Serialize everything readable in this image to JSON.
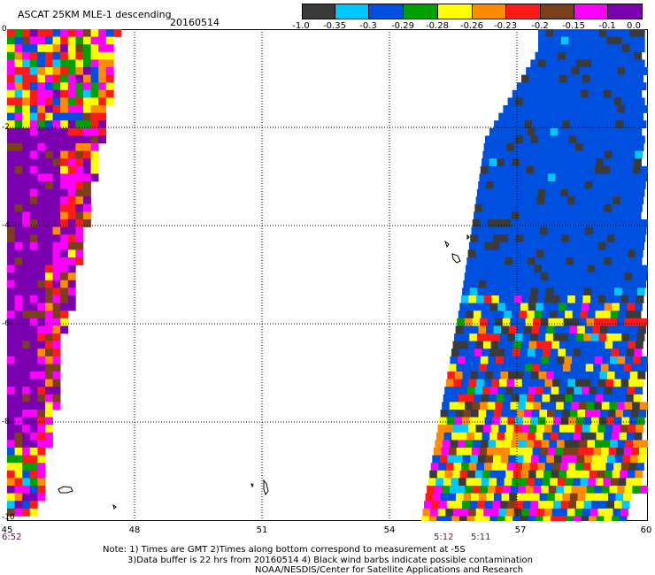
{
  "header": {
    "title": "ASCAT 25KM MLE-1 descending",
    "date": "20160514"
  },
  "legend": {
    "colors": [
      "#3a3a3a",
      "#00c8ff",
      "#0050e0",
      "#00a000",
      "#ffff00",
      "#ff8c00",
      "#ff1a1a",
      "#7b3f1a",
      "#ff00ff",
      "#7b00b0"
    ],
    "labels": [
      "-1.0",
      "-0.35",
      "-0.3",
      "-0.29",
      "-0.28",
      "-0.26",
      "-0.23",
      "-0.2",
      "-0.15",
      "-0.1",
      "0.0"
    ]
  },
  "axes": {
    "x_ticks": [
      "45",
      "48",
      "51",
      "54",
      "57",
      "60"
    ],
    "y_ticks": [
      "0",
      "-2",
      "-4",
      "-6",
      "-8",
      "-10"
    ]
  },
  "times": [
    "6:52",
    "5:12",
    "5:11"
  ],
  "notes": {
    "line1": "Note: 1) Times are GMT 2)Times along bottom correspond to measurement at -5S",
    "line2": "3)Data buffer is 22 hrs from 20160514 4) Black wind barbs indicate possible contamination",
    "line3": "NOAA/NESDIS/Center for Satellite Applications and Research"
  }
}
